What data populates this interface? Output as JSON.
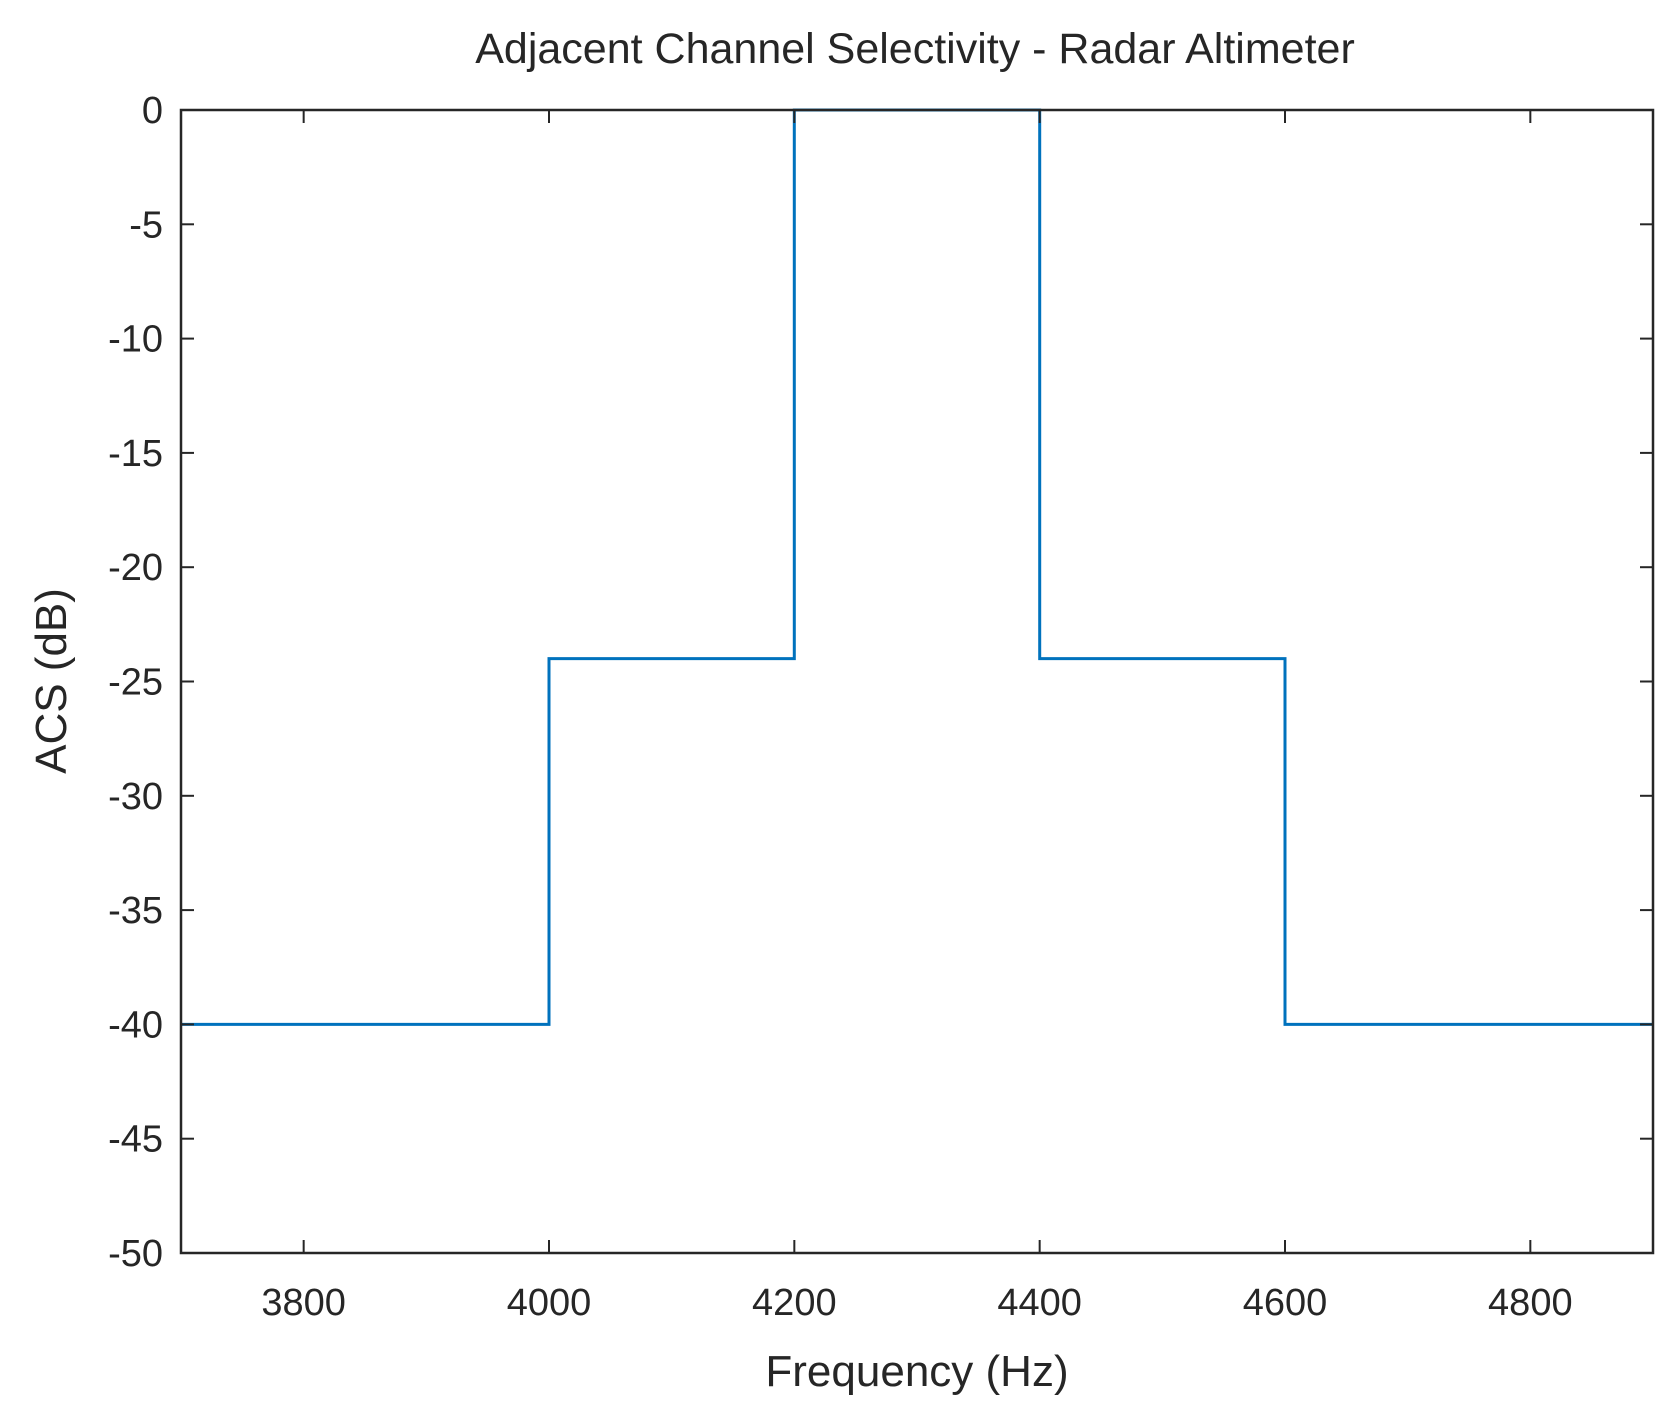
{
  "chart_data": {
    "type": "line",
    "title": "Adjacent Channel Selectivity - Radar Altimeter",
    "xlabel": "Frequency (Hz)",
    "ylabel": "ACS (dB)",
    "xlim": [
      3700,
      4900
    ],
    "ylim": [
      -50,
      0
    ],
    "xticks": [
      3800,
      4000,
      4200,
      4400,
      4600,
      4800
    ],
    "yticks": [
      0,
      -5,
      -10,
      -15,
      -20,
      -25,
      -30,
      -35,
      -40,
      -45,
      -50
    ],
    "grid": false,
    "series": [
      {
        "color": "#0072BD",
        "step": true,
        "x": [
          3700,
          4000,
          4000,
          4200,
          4200,
          4400,
          4400,
          4600,
          4600,
          4900
        ],
        "y": [
          -40,
          -40,
          -24,
          -24,
          0,
          0,
          -24,
          -24,
          -40,
          -40
        ]
      }
    ]
  }
}
